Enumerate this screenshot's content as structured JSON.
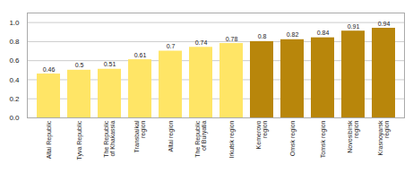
{
  "chart_data": {
    "type": "bar",
    "categories": [
      "Altai Republic",
      "Tyva Republic",
      "The Republic\nof Khakassia",
      "Transbaikal\nregion",
      "Altai region",
      "The Republic\nof Buryatia",
      "Irkutsk region",
      "Kemerovo\nregion",
      "Omsk region",
      "Tomsk region",
      "Novosibirsk\nregion",
      "Krasnoyarsk\nregion"
    ],
    "values": [
      0.46,
      0.5,
      0.51,
      0.61,
      0.7,
      0.74,
      0.78,
      0.8,
      0.82,
      0.84,
      0.91,
      0.94
    ],
    "colors": [
      "#FFE566",
      "#FFE566",
      "#FFE566",
      "#FFE566",
      "#FFE566",
      "#FFE566",
      "#FFE566",
      "#B8860B",
      "#B8860B",
      "#B8860B",
      "#B8860B",
      "#B8860B"
    ],
    "ylim": [
      0,
      1.1
    ],
    "yticks": [
      {
        "value": 0,
        "label": "0.0"
      },
      0.2,
      0.4,
      0.6,
      0.8,
      {
        "value": 1,
        "label": "1.0"
      }
    ],
    "grid": true,
    "data_labels": true
  }
}
